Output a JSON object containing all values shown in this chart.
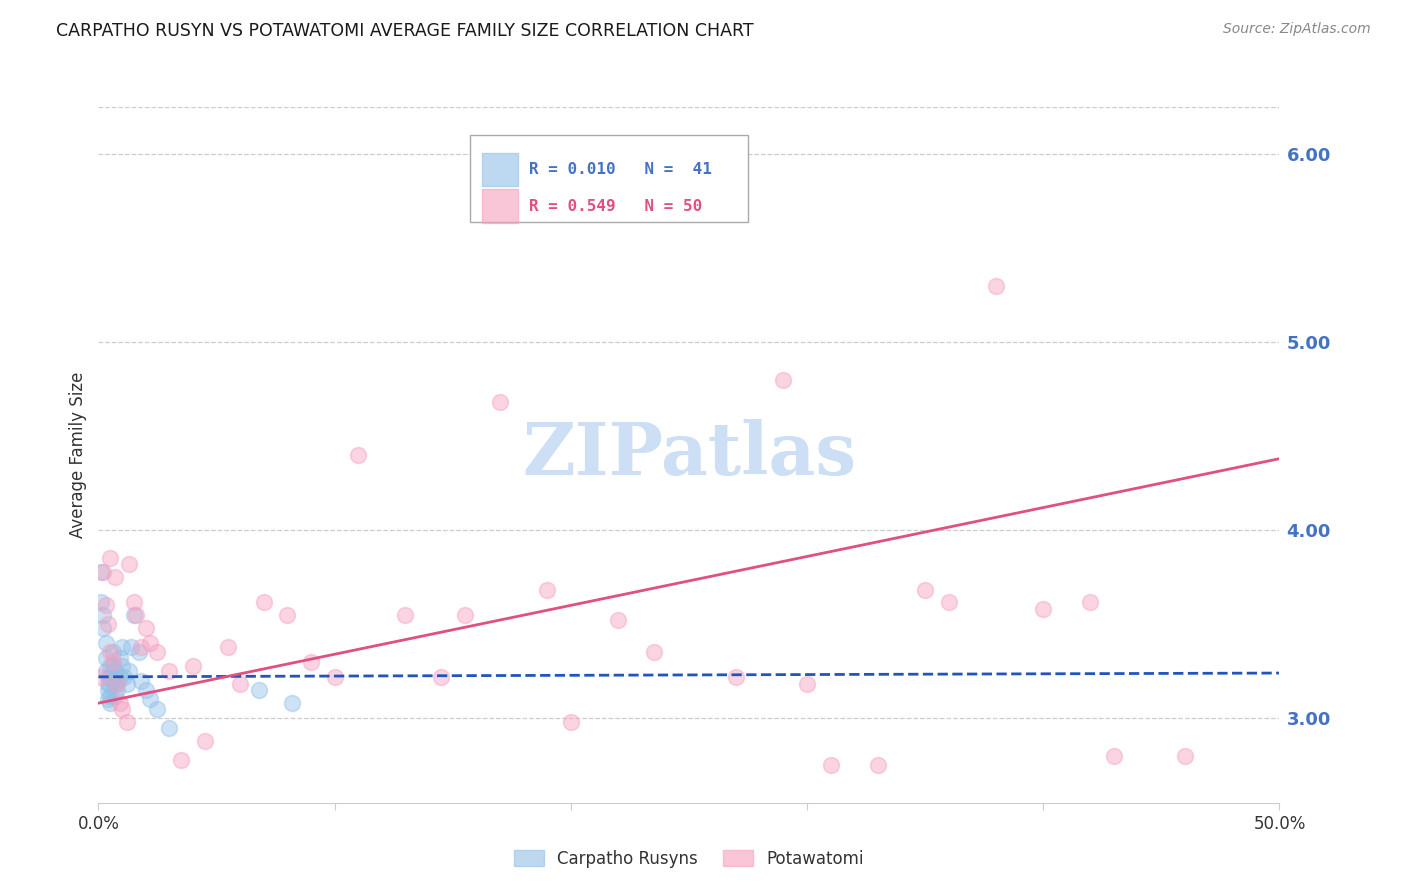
{
  "title": "CARPATHO RUSYN VS POTAWATOMI AVERAGE FAMILY SIZE CORRELATION CHART",
  "source": "Source: ZipAtlas.com",
  "ylabel": "Average Family Size",
  "xmin": 0.0,
  "xmax": 0.5,
  "ymin": 2.55,
  "ymax": 6.25,
  "yticks": [
    3.0,
    4.0,
    5.0,
    6.0
  ],
  "title_color": "#1a1a1a",
  "source_color": "#888888",
  "ylabel_color": "#333333",
  "ytick_color": "#4472c4",
  "grid_color": "#cccccc",
  "blue_scatter_color": "#92c0e8",
  "pink_scatter_color": "#f5a0bf",
  "blue_line_color": "#2255bb",
  "pink_line_color": "#e05080",
  "legend_blue_label": "Carpatho Rusyns",
  "legend_pink_label": "Potawatomi",
  "watermark_color": "#ccdff5",
  "blue_x": [
    0.001,
    0.001,
    0.002,
    0.002,
    0.003,
    0.003,
    0.003,
    0.004,
    0.004,
    0.004,
    0.004,
    0.005,
    0.005,
    0.005,
    0.005,
    0.005,
    0.006,
    0.006,
    0.006,
    0.007,
    0.007,
    0.007,
    0.008,
    0.008,
    0.009,
    0.009,
    0.01,
    0.01,
    0.011,
    0.012,
    0.013,
    0.014,
    0.015,
    0.017,
    0.018,
    0.02,
    0.022,
    0.025,
    0.03,
    0.068,
    0.082
  ],
  "blue_y": [
    3.78,
    3.62,
    3.55,
    3.48,
    3.4,
    3.32,
    3.25,
    3.22,
    3.18,
    3.15,
    3.1,
    3.28,
    3.22,
    3.18,
    3.12,
    3.08,
    3.35,
    3.28,
    3.2,
    3.25,
    3.18,
    3.12,
    3.2,
    3.15,
    3.32,
    3.22,
    3.38,
    3.28,
    3.22,
    3.18,
    3.25,
    3.38,
    3.55,
    3.35,
    3.2,
    3.15,
    3.1,
    3.05,
    2.95,
    3.15,
    3.08
  ],
  "pink_x": [
    0.001,
    0.002,
    0.003,
    0.004,
    0.005,
    0.005,
    0.006,
    0.007,
    0.008,
    0.009,
    0.01,
    0.012,
    0.013,
    0.015,
    0.016,
    0.018,
    0.02,
    0.022,
    0.025,
    0.03,
    0.035,
    0.04,
    0.045,
    0.055,
    0.06,
    0.07,
    0.08,
    0.09,
    0.1,
    0.11,
    0.13,
    0.145,
    0.155,
    0.17,
    0.19,
    0.2,
    0.22,
    0.235,
    0.27,
    0.29,
    0.3,
    0.31,
    0.33,
    0.35,
    0.36,
    0.38,
    0.4,
    0.42,
    0.43,
    0.46
  ],
  "pink_y": [
    3.22,
    3.78,
    3.6,
    3.5,
    3.35,
    3.85,
    3.3,
    3.75,
    3.18,
    3.08,
    3.05,
    2.98,
    3.82,
    3.62,
    3.55,
    3.38,
    3.48,
    3.4,
    3.35,
    3.25,
    2.78,
    3.28,
    2.88,
    3.38,
    3.18,
    3.62,
    3.55,
    3.3,
    3.22,
    4.4,
    3.55,
    3.22,
    3.55,
    4.68,
    3.68,
    2.98,
    3.52,
    3.35,
    3.22,
    4.8,
    3.18,
    2.75,
    2.75,
    3.68,
    3.62,
    5.3,
    3.58,
    3.62,
    2.8,
    2.8
  ],
  "blue_line_x0": 0.0,
  "blue_line_x1": 0.5,
  "blue_line_y0": 3.22,
  "blue_line_y1": 3.24,
  "pink_line_x0": 0.0,
  "pink_line_x1": 0.5,
  "pink_line_y0": 3.08,
  "pink_line_y1": 4.38,
  "background_color": "#ffffff"
}
